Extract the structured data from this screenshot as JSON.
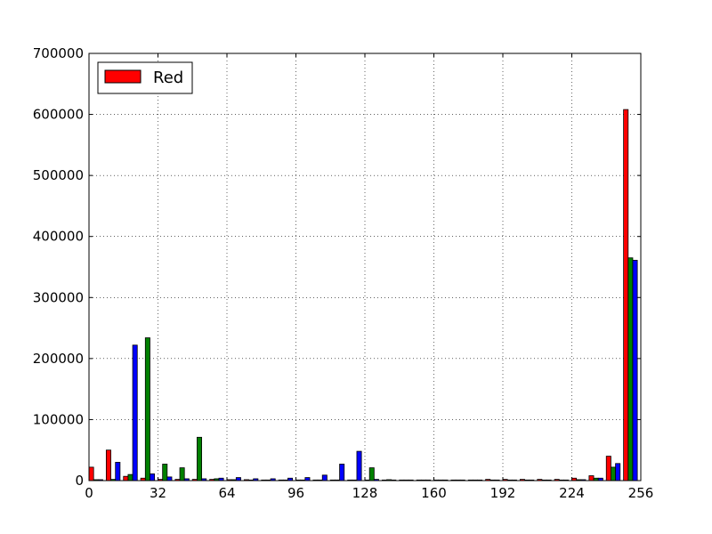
{
  "chart_data": {
    "type": "bar",
    "title": "",
    "xlabel": "",
    "ylabel": "",
    "xlim": [
      0,
      256
    ],
    "ylim": [
      0,
      700000
    ],
    "xticks": [
      "0",
      "32",
      "64",
      "96",
      "128",
      "160",
      "192",
      "224",
      "256"
    ],
    "yticks": [
      "0",
      "100000",
      "200000",
      "300000",
      "400000",
      "500000",
      "600000",
      "700000"
    ],
    "grid": true,
    "legend": {
      "position": "top-left",
      "entries": [
        "Red"
      ]
    },
    "bin_width": 8,
    "bin_starts": [
      0,
      8,
      16,
      24,
      32,
      40,
      48,
      56,
      64,
      72,
      80,
      88,
      96,
      104,
      112,
      120,
      128,
      136,
      144,
      152,
      160,
      168,
      176,
      184,
      192,
      200,
      208,
      216,
      224,
      232,
      240,
      248
    ],
    "series": [
      {
        "name": "Red",
        "color": "#ff0000",
        "values": [
          22000,
          50000,
          7000,
          4000,
          2000,
          2000,
          2000,
          2000,
          1500,
          1500,
          1000,
          1000,
          1000,
          1000,
          1000,
          1000,
          1000,
          1000,
          1000,
          1000,
          1000,
          1000,
          1000,
          2000,
          2000,
          2000,
          2000,
          2000,
          4000,
          8000,
          40000,
          608000
        ]
      },
      {
        "color": "#008000",
        "values": [
          1500,
          2000,
          10000,
          234000,
          27000,
          21000,
          71000,
          3000,
          1500,
          1000,
          1000,
          1000,
          1000,
          1000,
          1000,
          1000,
          21000,
          1500,
          1000,
          1000,
          1000,
          1000,
          1000,
          1000,
          1000,
          1000,
          1000,
          1000,
          1500,
          4000,
          22000,
          365000
        ]
      },
      {
        "color": "#0000ff",
        "values": [
          1500,
          30000,
          222000,
          11000,
          6000,
          3000,
          3000,
          4000,
          5000,
          3000,
          3000,
          4000,
          5000,
          9000,
          27000,
          48000,
          2000,
          1000,
          1000,
          1000,
          1000,
          1000,
          1000,
          1000,
          1000,
          1000,
          1000,
          1000,
          1500,
          4000,
          28000,
          361000
        ]
      }
    ]
  }
}
